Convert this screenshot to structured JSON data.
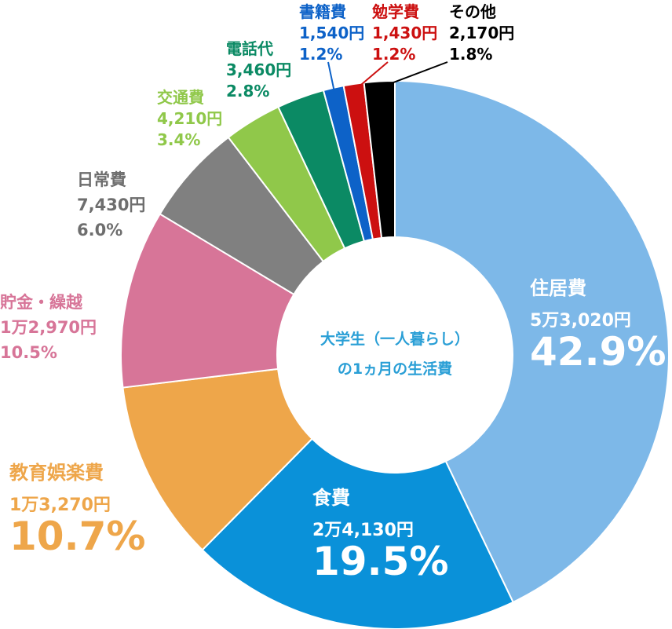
{
  "chart_data": {
    "type": "pie",
    "title": "",
    "center_text": [
      "大学生（一人暮らし）",
      "の1ヵ月の生活費"
    ],
    "slices": [
      {
        "label": "住居費",
        "amount": "5万3,020円",
        "percent": "42.9%",
        "value": 42.9,
        "color": "#7db8e8",
        "text_color": "#ffffff"
      },
      {
        "label": "食費",
        "amount": "2万4,130円",
        "percent": "19.5%",
        "value": 19.5,
        "color": "#0a91d9",
        "text_color": "#ffffff"
      },
      {
        "label": "教育娯楽費",
        "amount": "1万3,270円",
        "percent": "10.7%",
        "value": 10.7,
        "color": "#eea64a",
        "text_color": "#eea64a"
      },
      {
        "label": "貯金・繰越",
        "amount": "1万2,970円",
        "percent": "10.5%",
        "value": 10.5,
        "color": "#d77598",
        "text_color": "#d77598"
      },
      {
        "label": "日常費",
        "amount": "7,430円",
        "percent": "6.0%",
        "value": 6.0,
        "color": "#808080",
        "text_color": "#6e6e6e"
      },
      {
        "label": "交通費",
        "amount": "4,210円",
        "percent": "3.4%",
        "value": 3.4,
        "color": "#90c84a",
        "text_color": "#90c84a"
      },
      {
        "label": "電話代",
        "amount": "3,460円",
        "percent": "2.8%",
        "value": 2.8,
        "color": "#0b8a64",
        "text_color": "#0b8a64"
      },
      {
        "label": "書籍費",
        "amount": "1,540円",
        "percent": "1.2%",
        "value": 1.2,
        "color": "#0d62c8",
        "text_color": "#0d62c8"
      },
      {
        "label": "勉学費",
        "amount": "1,430円",
        "percent": "1.2%",
        "value": 1.2,
        "color": "#cc1010",
        "text_color": "#cc1010"
      },
      {
        "label": "その他",
        "amount": "2,170円",
        "percent": "1.8%",
        "value": 1.8,
        "color": "#000000",
        "text_color": "#000000"
      }
    ],
    "center_text_color": "#2a9fd6",
    "leader_line_color": "#000000"
  }
}
